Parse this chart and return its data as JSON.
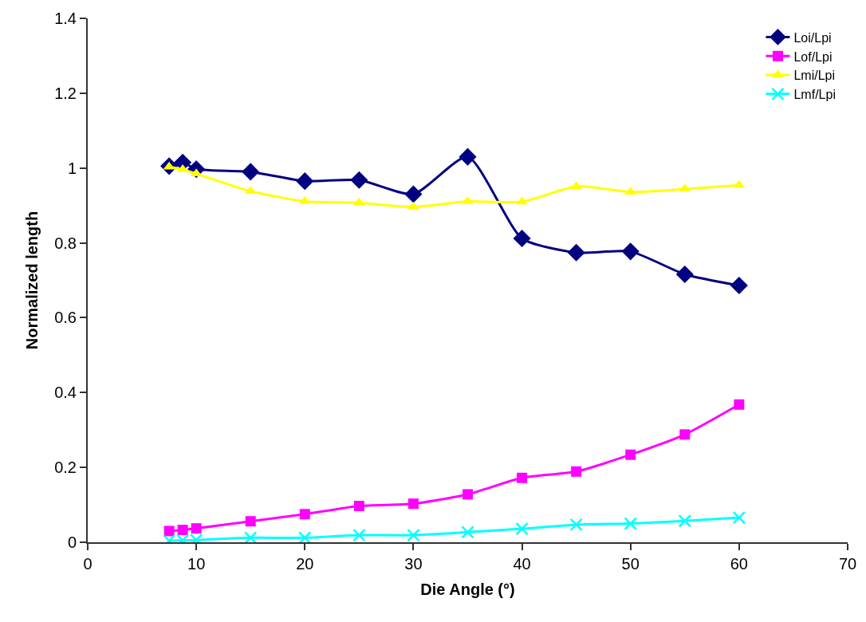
{
  "chart_data": {
    "type": "line",
    "xlabel": "Die Angle (°)",
    "ylabel": "Normalized length",
    "x": [
      7.5,
      8.75,
      10,
      15,
      20,
      25,
      30,
      35,
      40,
      45,
      50,
      55,
      60
    ],
    "xlim": [
      0,
      70
    ],
    "xticks": [
      0,
      10,
      20,
      30,
      40,
      50,
      60,
      70
    ],
    "ylim": [
      0,
      1.4
    ],
    "yticks": [
      0,
      0.2,
      0.4,
      0.6,
      0.8,
      1,
      1.2,
      1.4
    ],
    "legend": "top right",
    "series": [
      {
        "name": "Loi/Lpi",
        "color": "#000080",
        "marker": "diamond",
        "values": [
          1.005,
          1.015,
          0.997,
          0.99,
          0.965,
          0.968,
          0.93,
          1.03,
          0.812,
          0.774,
          0.777,
          0.716,
          0.686
        ]
      },
      {
        "name": "Lof/Lpi",
        "color": "#ff00ff",
        "marker": "square",
        "values": [
          0.03,
          0.033,
          0.037,
          0.056,
          0.075,
          0.097,
          0.103,
          0.128,
          0.172,
          0.189,
          0.234,
          0.288,
          0.368
        ]
      },
      {
        "name": "Lmi/Lpi",
        "color": "#ffff00",
        "marker": "triangle",
        "values": [
          1.003,
          0.996,
          0.985,
          0.938,
          0.911,
          0.907,
          0.896,
          0.911,
          0.91,
          0.951,
          0.936,
          0.944,
          0.954
        ]
      },
      {
        "name": "Lmf/Lpi",
        "color": "#00ffff",
        "marker": "cross",
        "values": [
          0.004,
          0.005,
          0.006,
          0.012,
          0.012,
          0.019,
          0.019,
          0.027,
          0.036,
          0.047,
          0.05,
          0.057,
          0.066
        ]
      }
    ]
  }
}
